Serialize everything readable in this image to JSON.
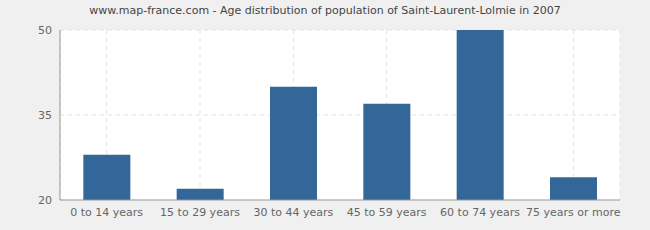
{
  "chart_data": {
    "type": "bar",
    "title": "www.map-france.com - Age distribution of population of Saint-Laurent-Lolmie in 2007",
    "categories": [
      "0 to 14 years",
      "15 to 29 years",
      "30 to 44 years",
      "45 to 59 years",
      "60 to 74 years",
      "75 years or more"
    ],
    "values": [
      28,
      22,
      40,
      37,
      50,
      24
    ],
    "color": "#336699",
    "ylim": [
      20,
      50
    ],
    "yticks": [
      20,
      35,
      50
    ],
    "grid": true
  }
}
